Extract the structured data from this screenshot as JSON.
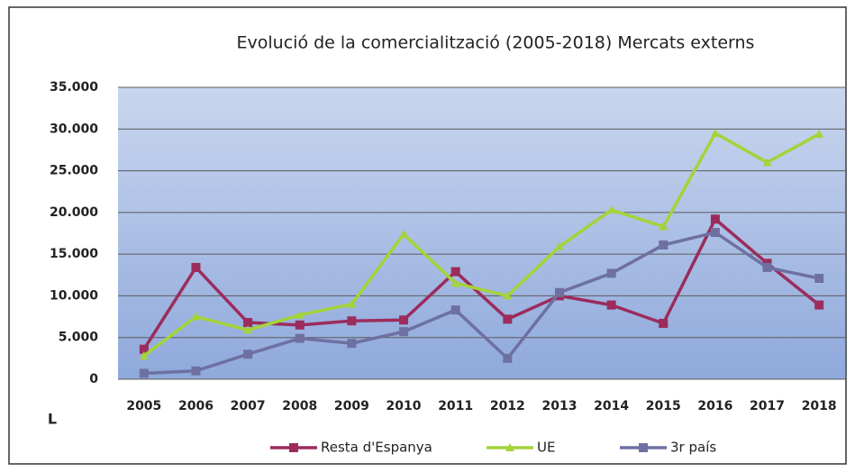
{
  "chart_data": {
    "type": "line",
    "title": "Evolució de la comercialització (2005-2018) Mercats externs",
    "annotation": "L",
    "categories": [
      "2005",
      "2006",
      "2007",
      "2008",
      "2009",
      "2010",
      "2011",
      "2012",
      "2013",
      "2014",
      "2015",
      "2016",
      "2017",
      "2018"
    ],
    "series": [
      {
        "name": "Resta d'Espanya",
        "color": "#9b2c5c",
        "marker": "square",
        "values": [
          3600,
          13400,
          6800,
          6500,
          7000,
          7100,
          12900,
          7200,
          10000,
          8900,
          6700,
          19200,
          13900,
          8900
        ]
      },
      {
        "name": "UE",
        "color": "#a4d33a",
        "marker": "triangle",
        "values": [
          2800,
          7500,
          5900,
          7700,
          9000,
          17400,
          11500,
          10000,
          15900,
          20300,
          18300,
          29500,
          26000,
          29400
        ]
      },
      {
        "name": "3r país",
        "color": "#6e70a2",
        "marker": "square",
        "values": [
          700,
          1000,
          3000,
          4900,
          4300,
          5700,
          8300,
          2500,
          10400,
          12700,
          16100,
          17600,
          13400,
          12100
        ]
      }
    ],
    "ylim": [
      0,
      35000
    ],
    "yticks": [
      0,
      {
        "value": 5000,
        "label": "5.000"
      },
      {
        "value": 10000,
        "label": "10.000"
      },
      {
        "value": 15000,
        "label": "15.000"
      },
      {
        "value": 20000,
        "label": "20.000"
      },
      {
        "value": 25000,
        "label": "25.000"
      },
      {
        "value": 30000,
        "label": "30.000"
      },
      {
        "value": 35000,
        "label": "35.000"
      }
    ],
    "grid": true,
    "legend": "bottom"
  }
}
